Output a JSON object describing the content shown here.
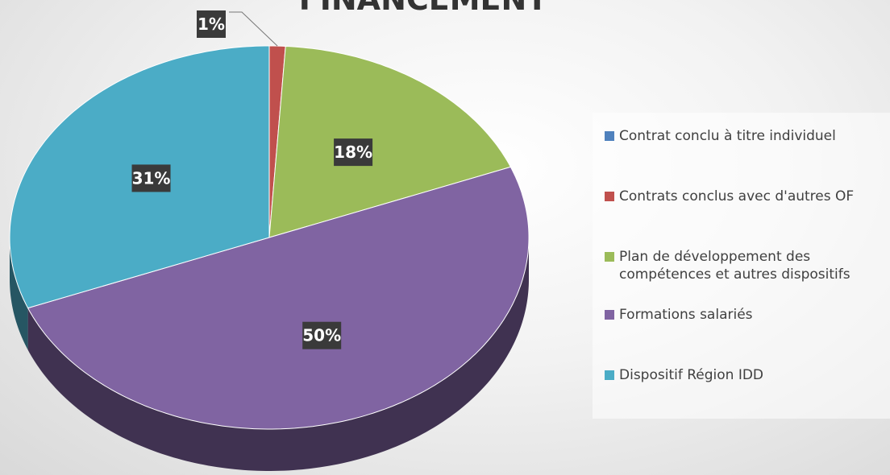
{
  "chart_data": {
    "type": "pie",
    "title": "FINANCEMENT",
    "categories": [
      "Contrat conclu à titre individuel",
      "Contrats conclus avec d'autres OF",
      "Plan de développement des compétences et autres dispositifs",
      "Formations salariés",
      "Dispositif Région IDD"
    ],
    "values": [
      0,
      1,
      18,
      50,
      31
    ],
    "value_labels": [
      null,
      "1%",
      "18%",
      "50%",
      "31%"
    ],
    "colors": [
      "#4f81bd",
      "#c0504d",
      "#9bbb59",
      "#8064a2",
      "#4bacc6"
    ],
    "legend": "right"
  }
}
